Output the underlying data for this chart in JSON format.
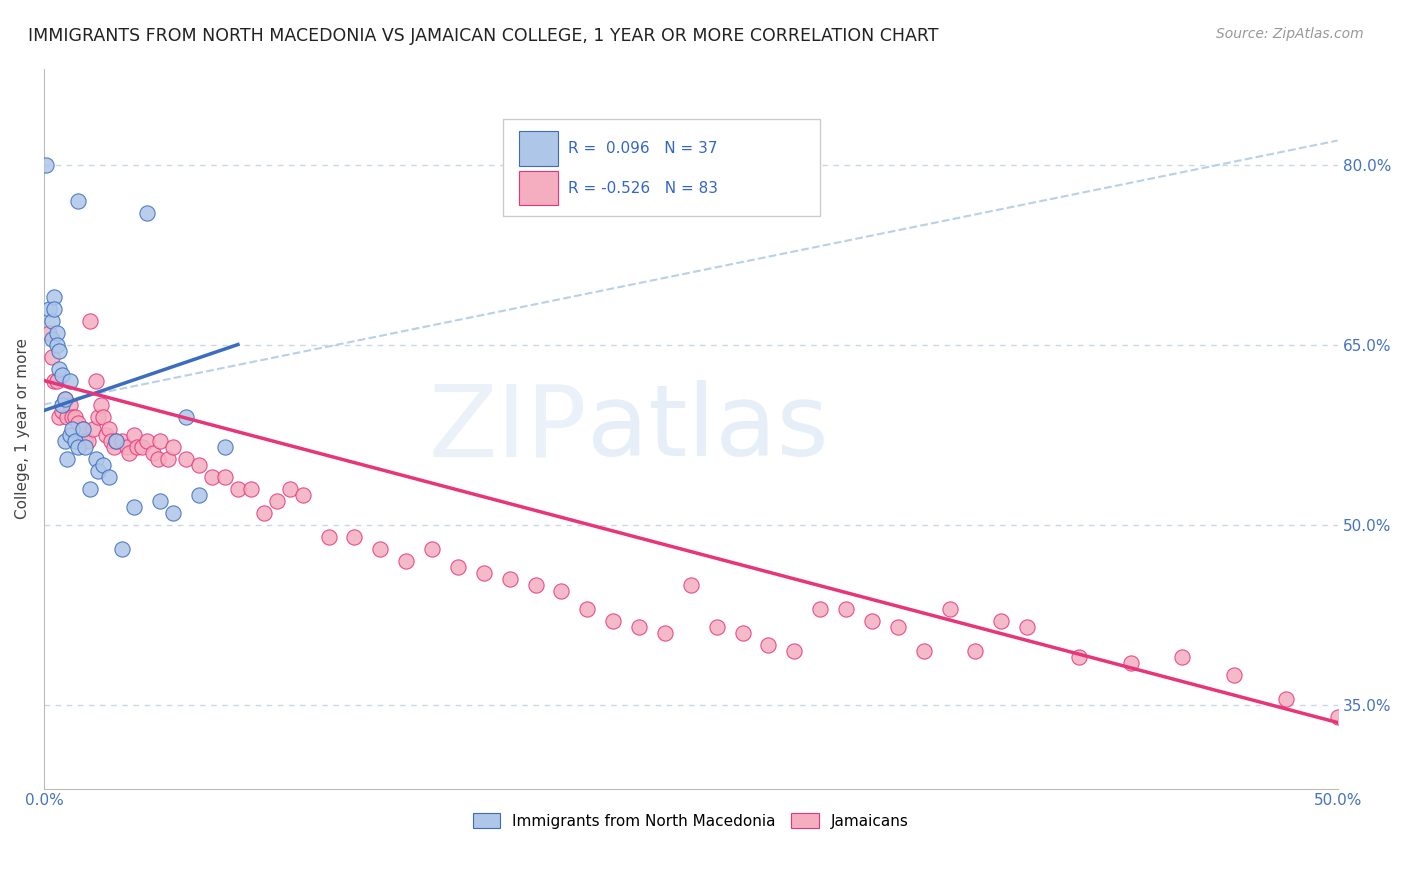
{
  "title": "IMMIGRANTS FROM NORTH MACEDONIA VS JAMAICAN COLLEGE, 1 YEAR OR MORE CORRELATION CHART",
  "source": "Source: ZipAtlas.com",
  "ylabel": "College, 1 year or more",
  "xlim": [
    0.0,
    0.5
  ],
  "ylim": [
    0.28,
    0.88
  ],
  "x_ticks": [
    0.0,
    0.05,
    0.1,
    0.15,
    0.2,
    0.25,
    0.3,
    0.35,
    0.4,
    0.45,
    0.5
  ],
  "x_tick_labels": [
    "0.0%",
    "",
    "",
    "",
    "",
    "",
    "",
    "",
    "",
    "",
    "50.0%"
  ],
  "y_ticks_right": [
    0.35,
    0.5,
    0.65,
    0.8
  ],
  "y_tick_labels_right": [
    "35.0%",
    "50.0%",
    "65.0%",
    "80.0%"
  ],
  "legend_labels": [
    "Immigrants from North Macedonia",
    "Jamaicans"
  ],
  "scatter_blue_color": "#aec6e8",
  "scatter_pink_color": "#f4aec0",
  "line_blue_color": "#3a6cbf",
  "line_pink_color": "#e8357a",
  "line_dash_color": "#b8d0e8",
  "R_blue": 0.096,
  "N_blue": 37,
  "R_pink": -0.526,
  "N_pink": 83,
  "blue_scatter_x": [
    0.001,
    0.013,
    0.002,
    0.003,
    0.004,
    0.003,
    0.004,
    0.005,
    0.005,
    0.006,
    0.006,
    0.007,
    0.007,
    0.008,
    0.008,
    0.009,
    0.01,
    0.01,
    0.011,
    0.012,
    0.013,
    0.015,
    0.016,
    0.018,
    0.02,
    0.021,
    0.023,
    0.025,
    0.028,
    0.03,
    0.035,
    0.04,
    0.045,
    0.05,
    0.055,
    0.06,
    0.07
  ],
  "blue_scatter_y": [
    0.8,
    0.77,
    0.68,
    0.655,
    0.69,
    0.67,
    0.68,
    0.66,
    0.65,
    0.645,
    0.63,
    0.625,
    0.6,
    0.605,
    0.57,
    0.555,
    0.62,
    0.575,
    0.58,
    0.57,
    0.565,
    0.58,
    0.565,
    0.53,
    0.555,
    0.545,
    0.55,
    0.54,
    0.57,
    0.48,
    0.515,
    0.76,
    0.52,
    0.51,
    0.59,
    0.525,
    0.565
  ],
  "pink_scatter_x": [
    0.002,
    0.003,
    0.004,
    0.005,
    0.006,
    0.007,
    0.008,
    0.009,
    0.01,
    0.011,
    0.012,
    0.013,
    0.014,
    0.015,
    0.016,
    0.017,
    0.018,
    0.019,
    0.02,
    0.021,
    0.022,
    0.023,
    0.024,
    0.025,
    0.026,
    0.027,
    0.028,
    0.03,
    0.032,
    0.033,
    0.035,
    0.036,
    0.038,
    0.04,
    0.042,
    0.044,
    0.045,
    0.048,
    0.05,
    0.055,
    0.06,
    0.065,
    0.07,
    0.075,
    0.08,
    0.085,
    0.09,
    0.095,
    0.1,
    0.11,
    0.12,
    0.13,
    0.14,
    0.15,
    0.16,
    0.17,
    0.18,
    0.19,
    0.2,
    0.21,
    0.22,
    0.23,
    0.24,
    0.25,
    0.26,
    0.27,
    0.28,
    0.29,
    0.3,
    0.31,
    0.32,
    0.33,
    0.34,
    0.35,
    0.36,
    0.38,
    0.4,
    0.42,
    0.44,
    0.46,
    0.48,
    0.5,
    0.37
  ],
  "pink_scatter_y": [
    0.66,
    0.64,
    0.62,
    0.62,
    0.59,
    0.595,
    0.605,
    0.59,
    0.6,
    0.59,
    0.59,
    0.585,
    0.575,
    0.58,
    0.57,
    0.57,
    0.67,
    0.58,
    0.62,
    0.59,
    0.6,
    0.59,
    0.575,
    0.58,
    0.57,
    0.565,
    0.57,
    0.57,
    0.565,
    0.56,
    0.575,
    0.565,
    0.565,
    0.57,
    0.56,
    0.555,
    0.57,
    0.555,
    0.565,
    0.555,
    0.55,
    0.54,
    0.54,
    0.53,
    0.53,
    0.51,
    0.52,
    0.53,
    0.525,
    0.49,
    0.49,
    0.48,
    0.47,
    0.48,
    0.465,
    0.46,
    0.455,
    0.45,
    0.445,
    0.43,
    0.42,
    0.415,
    0.41,
    0.45,
    0.415,
    0.41,
    0.4,
    0.395,
    0.43,
    0.43,
    0.42,
    0.415,
    0.395,
    0.43,
    0.395,
    0.415,
    0.39,
    0.385,
    0.39,
    0.375,
    0.355,
    0.34,
    0.42
  ],
  "blue_trend_x": [
    0.0,
    0.075
  ],
  "blue_trend_y": [
    0.595,
    0.65
  ],
  "pink_trend_x": [
    0.0,
    0.5
  ],
  "pink_trend_y": [
    0.62,
    0.335
  ],
  "dash_line_x": [
    0.0,
    0.5
  ],
  "dash_line_y": [
    0.6,
    0.82
  ]
}
